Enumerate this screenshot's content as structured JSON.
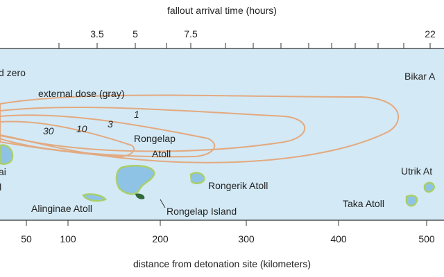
{
  "top_axis": {
    "title": "fallout arrival time (hours)",
    "ticks": [
      "3.5",
      "5",
      "7.5",
      "22"
    ]
  },
  "bottom_axis": {
    "title": "distance from detonation site (kilometers)",
    "ticks": [
      "50",
      "100",
      "200",
      "300",
      "400",
      "500"
    ]
  },
  "legend": {
    "title": "external dose (gray)",
    "levels": [
      "1",
      "3",
      "10",
      "30"
    ]
  },
  "places": {
    "ground_zero": "d zero",
    "bikar": "Bikar A",
    "rongelap_atoll_1": "Rongelap",
    "rongelap_atoll_2": "Atoll",
    "left_1": "ai",
    "left_2": "ll",
    "rongerik": "Rongerik Atoll",
    "utrik": "Utrik At",
    "taka": "Taka Atoll",
    "alinginae": "Alinginae Atoll",
    "rongelap_island": "Rongelap Island"
  }
}
